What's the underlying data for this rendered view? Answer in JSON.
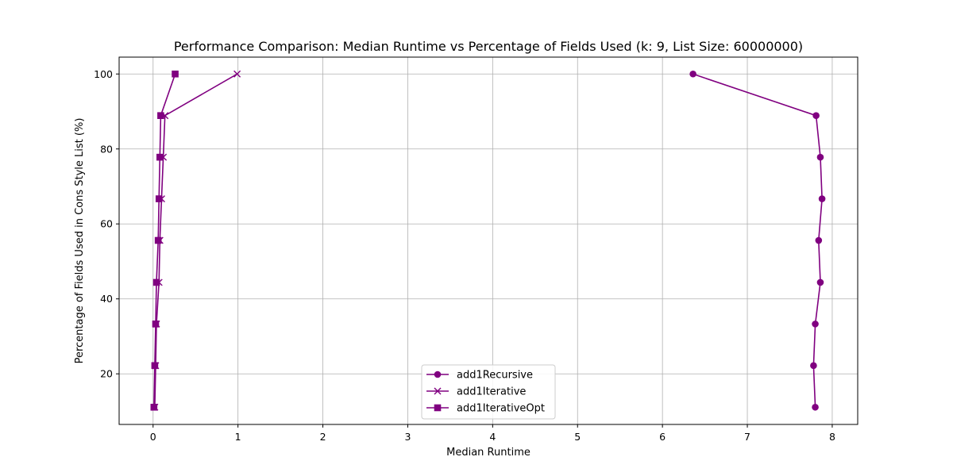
{
  "chart_data": {
    "type": "line",
    "title": "Performance Comparison: Median Runtime vs Percentage of Fields Used (k: 9, List Size: 60000000)",
    "xlabel": "Median Runtime",
    "ylabel": "Percentage of Fields Used in Cons Style List (%)",
    "xlim": [
      -0.4,
      8.3
    ],
    "ylim": [
      6.5,
      104.5
    ],
    "xticks": [
      0,
      1,
      2,
      3,
      4,
      5,
      6,
      7,
      8
    ],
    "yticks": [
      20,
      40,
      60,
      80,
      100
    ],
    "grid": true,
    "legend_position": "bottom-center",
    "series": [
      {
        "name": "add1Recursive",
        "marker": "circle",
        "color": "#800080",
        "points": [
          [
            7.8,
            11.1
          ],
          [
            7.78,
            22.2
          ],
          [
            7.8,
            33.3
          ],
          [
            7.86,
            44.4
          ],
          [
            7.84,
            55.6
          ],
          [
            7.88,
            66.7
          ],
          [
            7.86,
            77.8
          ],
          [
            7.81,
            88.9
          ],
          [
            6.36,
            100.0
          ]
        ]
      },
      {
        "name": "add1Iterative",
        "marker": "x",
        "color": "#800080",
        "points": [
          [
            0.02,
            11.1
          ],
          [
            0.03,
            22.2
          ],
          [
            0.04,
            33.3
          ],
          [
            0.07,
            44.4
          ],
          [
            0.08,
            55.6
          ],
          [
            0.1,
            66.7
          ],
          [
            0.12,
            77.8
          ],
          [
            0.14,
            88.9
          ],
          [
            0.99,
            100.0
          ]
        ]
      },
      {
        "name": "add1IterativeOpt",
        "marker": "square",
        "color": "#800080",
        "points": [
          [
            0.01,
            11.1
          ],
          [
            0.02,
            22.2
          ],
          [
            0.03,
            33.3
          ],
          [
            0.04,
            44.4
          ],
          [
            0.06,
            55.6
          ],
          [
            0.07,
            66.7
          ],
          [
            0.08,
            77.8
          ],
          [
            0.09,
            88.9
          ],
          [
            0.26,
            100.0
          ]
        ]
      }
    ]
  }
}
